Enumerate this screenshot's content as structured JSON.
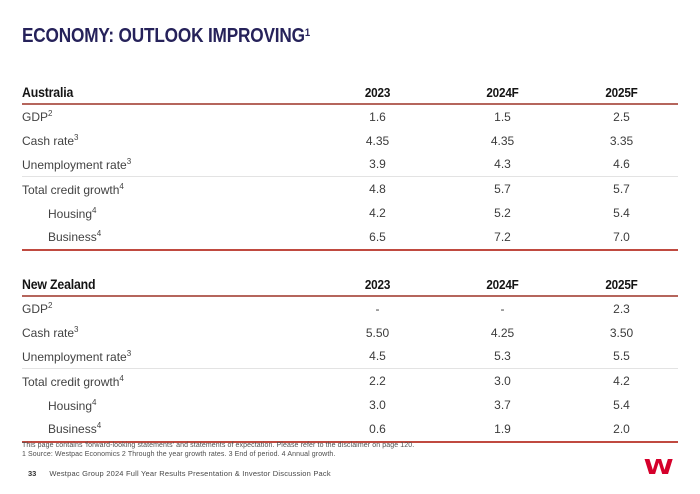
{
  "title": {
    "text": "ECONOMY: OUTLOOK IMPROVING",
    "sup": "1"
  },
  "tables": [
    {
      "name": "Australia",
      "columns": [
        "2023",
        "2024F",
        "2025F"
      ],
      "rows": [
        {
          "label": "GDP",
          "sup": "2",
          "indent": false,
          "divider": false,
          "values": [
            "1.6",
            "1.5",
            "2.5"
          ]
        },
        {
          "label": "Cash rate",
          "sup": "3",
          "indent": false,
          "divider": false,
          "values": [
            "4.35",
            "4.35",
            "3.35"
          ]
        },
        {
          "label": "Unemployment rate",
          "sup": "3",
          "indent": false,
          "divider": false,
          "values": [
            "3.9",
            "4.3",
            "4.6"
          ]
        },
        {
          "label": "Total credit growth",
          "sup": "4",
          "indent": false,
          "divider": true,
          "values": [
            "4.8",
            "5.7",
            "5.7"
          ]
        },
        {
          "label": "Housing",
          "sup": "4",
          "indent": true,
          "divider": false,
          "values": [
            "4.2",
            "5.2",
            "5.4"
          ]
        },
        {
          "label": "Business",
          "sup": "4",
          "indent": true,
          "divider": false,
          "values": [
            "6.5",
            "7.2",
            "7.0"
          ]
        }
      ]
    },
    {
      "name": "New Zealand",
      "columns": [
        "2023",
        "2024F",
        "2025F"
      ],
      "rows": [
        {
          "label": "GDP",
          "sup": "2",
          "indent": false,
          "divider": false,
          "values": [
            "-",
            "-",
            "2.3"
          ]
        },
        {
          "label": "Cash rate",
          "sup": "3",
          "indent": false,
          "divider": false,
          "values": [
            "5.50",
            "4.25",
            "3.50"
          ]
        },
        {
          "label": "Unemployment rate",
          "sup": "3",
          "indent": false,
          "divider": false,
          "values": [
            "4.5",
            "5.3",
            "5.5"
          ]
        },
        {
          "label": "Total credit growth",
          "sup": "4",
          "indent": false,
          "divider": true,
          "values": [
            "2.2",
            "3.0",
            "4.2"
          ]
        },
        {
          "label": "Housing",
          "sup": "4",
          "indent": true,
          "divider": false,
          "values": [
            "3.0",
            "3.7",
            "5.4"
          ]
        },
        {
          "label": "Business",
          "sup": "4",
          "indent": true,
          "divider": false,
          "values": [
            "0.6",
            "1.9",
            "2.0"
          ]
        }
      ]
    }
  ],
  "footnotes": {
    "line1": "This page contains 'forward-looking statements' and statements of expectation. Please refer to the disclaimer on page 120.",
    "line2": "1 Source: Westpac Economics 2 Through the year growth rates. 3 End of period. 4 Annual growth."
  },
  "footer": {
    "page_number": "33",
    "text": "Westpac Group 2024 Full Year Results Presentation & Investor Discussion Pack"
  },
  "logo": {
    "letter": "W"
  },
  "colors": {
    "title": "#26225a",
    "line-salmon": "#b5655c",
    "line-red": "#c04a40",
    "divider": "#e3e3e3",
    "brand-red": "#d5002b"
  },
  "chart_data": {
    "type": "table",
    "title": "ECONOMY: OUTLOOK IMPROVING",
    "sections": [
      {
        "region": "Australia",
        "columns": [
          "2023",
          "2024F",
          "2025F"
        ],
        "series": [
          {
            "name": "GDP",
            "values": [
              1.6,
              1.5,
              2.5
            ]
          },
          {
            "name": "Cash rate",
            "values": [
              4.35,
              4.35,
              3.35
            ]
          },
          {
            "name": "Unemployment rate",
            "values": [
              3.9,
              4.3,
              4.6
            ]
          },
          {
            "name": "Total credit growth",
            "values": [
              4.8,
              5.7,
              5.7
            ]
          },
          {
            "name": "Housing",
            "values": [
              4.2,
              5.2,
              5.4
            ]
          },
          {
            "name": "Business",
            "values": [
              6.5,
              7.2,
              7.0
            ]
          }
        ]
      },
      {
        "region": "New Zealand",
        "columns": [
          "2023",
          "2024F",
          "2025F"
        ],
        "series": [
          {
            "name": "GDP",
            "values": [
              null,
              null,
              2.3
            ]
          },
          {
            "name": "Cash rate",
            "values": [
              5.5,
              4.25,
              3.5
            ]
          },
          {
            "name": "Unemployment rate",
            "values": [
              4.5,
              5.3,
              5.5
            ]
          },
          {
            "name": "Total credit growth",
            "values": [
              2.2,
              3.0,
              4.2
            ]
          },
          {
            "name": "Housing",
            "values": [
              3.0,
              3.7,
              5.4
            ]
          },
          {
            "name": "Business",
            "values": [
              0.6,
              1.9,
              2.0
            ]
          }
        ]
      }
    ]
  }
}
